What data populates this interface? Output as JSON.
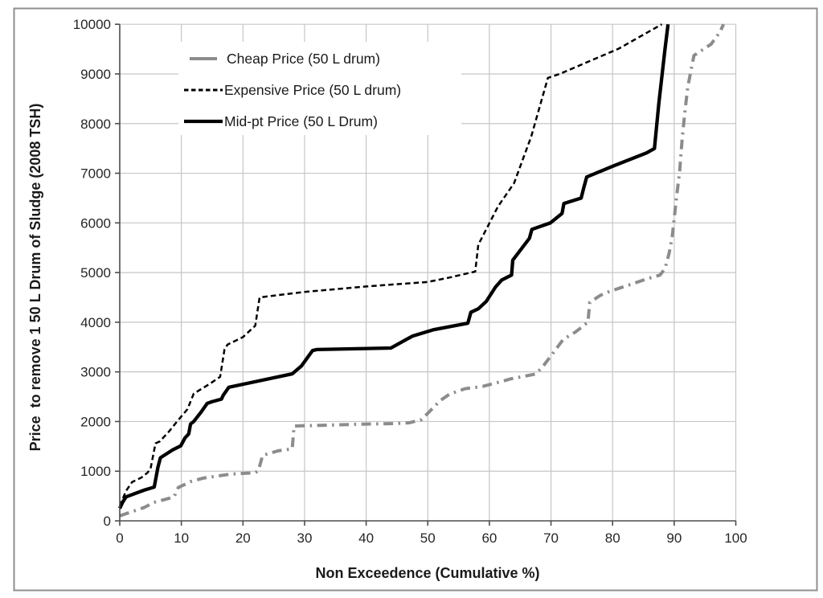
{
  "figure": {
    "frame_color": "#8f8f8f",
    "background": "#ffffff"
  },
  "chart_data": {
    "type": "line",
    "title": "",
    "xlabel": "Non Exceedence (Cumulative %)",
    "ylabel": "Price  to remove 1 50 L Drum of Sludge (2008 TSH)",
    "xlim": [
      0,
      100
    ],
    "ylim": [
      0,
      10000
    ],
    "xticks": [
      0,
      10,
      20,
      30,
      40,
      50,
      60,
      70,
      80,
      90,
      100
    ],
    "yticks": [
      0,
      1000,
      2000,
      3000,
      4000,
      5000,
      6000,
      7000,
      8000,
      9000,
      10000
    ],
    "grid": true,
    "gridline_color": "#c6c6c6",
    "axis_color": "#4d4d4d",
    "legend_position": "top-left-inside",
    "series": [
      {
        "name": "Cheap Price (50 L drum)",
        "color": "#8c8c8c",
        "style": "dashdot",
        "width": 4,
        "points": [
          [
            0,
            100
          ],
          [
            4,
            270
          ],
          [
            5.5,
            370
          ],
          [
            8.8,
            480
          ],
          [
            9.5,
            670
          ],
          [
            11.5,
            790
          ],
          [
            13.5,
            860
          ],
          [
            18,
            940
          ],
          [
            22,
            970
          ],
          [
            22.5,
            1010
          ],
          [
            23.2,
            1320
          ],
          [
            25.7,
            1410
          ],
          [
            28,
            1450
          ],
          [
            28.3,
            1910
          ],
          [
            33,
            1925
          ],
          [
            39,
            1945
          ],
          [
            45,
            1960
          ],
          [
            47,
            1975
          ],
          [
            49,
            2040
          ],
          [
            52,
            2420
          ],
          [
            53.5,
            2550
          ],
          [
            56,
            2660
          ],
          [
            59,
            2710
          ],
          [
            61.5,
            2790
          ],
          [
            63.5,
            2860
          ],
          [
            67.5,
            2955
          ],
          [
            68.7,
            3110
          ],
          [
            72,
            3655
          ],
          [
            74,
            3805
          ],
          [
            76,
            4000
          ],
          [
            76.3,
            4400
          ],
          [
            78,
            4540
          ],
          [
            79.5,
            4620
          ],
          [
            83.5,
            4785
          ],
          [
            85.5,
            4870
          ],
          [
            87.7,
            4950
          ],
          [
            88.5,
            5080
          ],
          [
            89.2,
            5400
          ],
          [
            89.7,
            5750
          ],
          [
            90.3,
            6425
          ],
          [
            90.9,
            7050
          ],
          [
            91.3,
            7700
          ],
          [
            91.8,
            8300
          ],
          [
            92.2,
            8730
          ],
          [
            92.7,
            9050
          ],
          [
            93.2,
            9370
          ],
          [
            96,
            9600
          ],
          [
            97.4,
            9840
          ],
          [
            98,
            10000
          ]
        ]
      },
      {
        "name": "Expensive Price (50 L drum)",
        "color": "#000000",
        "style": "dashed",
        "width": 2.5,
        "points": [
          [
            0,
            300
          ],
          [
            1,
            600
          ],
          [
            2,
            780
          ],
          [
            3.5,
            870
          ],
          [
            4.5,
            970
          ],
          [
            5,
            1050
          ],
          [
            5.8,
            1560
          ],
          [
            6.5,
            1600
          ],
          [
            8,
            1800
          ],
          [
            9.3,
            2000
          ],
          [
            11,
            2250
          ],
          [
            12,
            2560
          ],
          [
            14.5,
            2750
          ],
          [
            16.3,
            2900
          ],
          [
            17,
            3450
          ],
          [
            17.5,
            3550
          ],
          [
            20,
            3700
          ],
          [
            22,
            3930
          ],
          [
            22.7,
            4500
          ],
          [
            30,
            4610
          ],
          [
            40,
            4720
          ],
          [
            50,
            4810
          ],
          [
            53.5,
            4900
          ],
          [
            57.7,
            5020
          ],
          [
            58.2,
            5560
          ],
          [
            61.4,
            6330
          ],
          [
            64,
            6800
          ],
          [
            66.8,
            7740
          ],
          [
            69.5,
            8920
          ],
          [
            71.4,
            9000
          ],
          [
            81,
            9510
          ],
          [
            88,
            10000
          ]
        ]
      },
      {
        "name": "Mid-pt Price (50 L Drum)",
        "color": "#000000",
        "style": "solid",
        "width": 4.3,
        "points": [
          [
            0,
            250
          ],
          [
            0.4,
            360
          ],
          [
            1,
            480
          ],
          [
            2.7,
            560
          ],
          [
            4,
            620
          ],
          [
            5.6,
            680
          ],
          [
            6.2,
            1080
          ],
          [
            6.6,
            1270
          ],
          [
            8.6,
            1430
          ],
          [
            9.9,
            1510
          ],
          [
            10.6,
            1670
          ],
          [
            11.2,
            1750
          ],
          [
            11.5,
            1950
          ],
          [
            12,
            2000
          ],
          [
            13.2,
            2190
          ],
          [
            14.2,
            2365
          ],
          [
            15,
            2400
          ],
          [
            16.5,
            2450
          ],
          [
            16.8,
            2530
          ],
          [
            17.7,
            2690
          ],
          [
            28,
            2960
          ],
          [
            29.5,
            3120
          ],
          [
            31.3,
            3430
          ],
          [
            32,
            3450
          ],
          [
            44,
            3480
          ],
          [
            47.5,
            3720
          ],
          [
            51,
            3850
          ],
          [
            56.5,
            3980
          ],
          [
            57,
            4200
          ],
          [
            58.2,
            4270
          ],
          [
            59.5,
            4420
          ],
          [
            61,
            4710
          ],
          [
            62,
            4850
          ],
          [
            63.6,
            4950
          ],
          [
            63.8,
            5250
          ],
          [
            66.5,
            5690
          ],
          [
            66.9,
            5870
          ],
          [
            69.9,
            6000
          ],
          [
            71.8,
            6190
          ],
          [
            72.1,
            6390
          ],
          [
            74.9,
            6500
          ],
          [
            75.3,
            6700
          ],
          [
            75.8,
            6925
          ],
          [
            80,
            7140
          ],
          [
            85.5,
            7410
          ],
          [
            86.8,
            7500
          ],
          [
            87.5,
            8400
          ],
          [
            88.5,
            9500
          ],
          [
            89,
            10000
          ]
        ]
      }
    ]
  }
}
